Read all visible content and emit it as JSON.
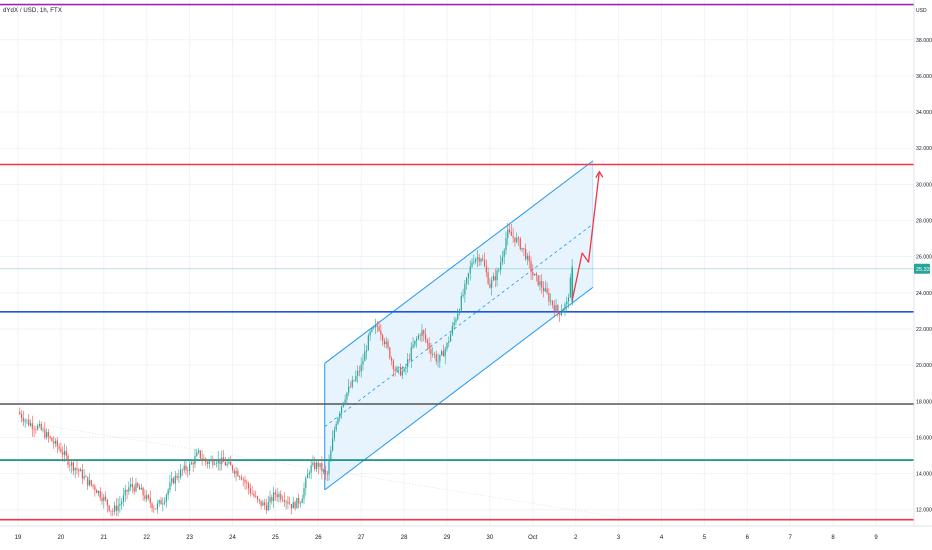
{
  "symbol": "dYdX / USD, 1h, FTX",
  "currency": "USD",
  "chart_data": {
    "type": "candlestick",
    "x": {
      "labels": [
        "19",
        "20",
        "21",
        "22",
        "23",
        "24",
        "25",
        "26",
        "27",
        "28",
        "29",
        "30",
        "Oct",
        "2",
        "3",
        "4",
        "5",
        "6",
        "7",
        "8",
        "9"
      ],
      "range": [
        0,
        21.6
      ]
    },
    "y": {
      "labels": [
        "12.000",
        "14.000",
        "16.000",
        "18.000",
        "20.000",
        "22.000",
        "24.000",
        "26.000",
        "28.000",
        "30.000",
        "32.000",
        "34.000",
        "36.000",
        "38.000"
      ],
      "range": [
        11.1,
        40.2
      ]
    },
    "last_price": "25.33",
    "colors": {
      "up": "#26a69a",
      "down": "#ef5350",
      "channel": "#2196f3",
      "channel_fill": "#e3f2fd",
      "arrow": "#f23645"
    },
    "horizontal_lines": [
      {
        "price": 39.95,
        "color": "#9c27b0"
      },
      {
        "price": 31.1,
        "color": "#f23645"
      },
      {
        "price": 22.95,
        "color": "#1e53e5"
      },
      {
        "price": 17.85,
        "color": "#555555"
      },
      {
        "price": 14.75,
        "color": "#0a8a7f"
      },
      {
        "price": 11.45,
        "color": "#f23645"
      }
    ],
    "last_price_line": {
      "price": 25.33,
      "color": "#26a69a"
    },
    "parallel_channel": {
      "lower": [
        [
          7.15,
          13.1
        ],
        [
          13.4,
          24.3
        ]
      ],
      "upper": [
        [
          7.15,
          20.1
        ],
        [
          13.4,
          31.3
        ]
      ],
      "midline": [
        [
          7.15,
          16.6
        ],
        [
          13.4,
          27.8
        ]
      ]
    },
    "projection_arrow": [
      [
        12.92,
        23.6
      ],
      [
        13.15,
        26.2
      ],
      [
        13.3,
        25.7
      ],
      [
        13.55,
        30.7
      ]
    ],
    "price_path": [
      [
        0.0,
        17.4
      ],
      [
        0.25,
        16.8
      ],
      [
        0.5,
        16.5
      ],
      [
        0.75,
        15.9
      ],
      [
        1.0,
        15.3
      ],
      [
        1.2,
        14.6
      ],
      [
        1.4,
        14.2
      ],
      [
        1.6,
        13.6
      ],
      [
        1.8,
        13.2
      ],
      [
        2.0,
        12.6
      ],
      [
        2.2,
        11.9
      ],
      [
        2.4,
        12.4
      ],
      [
        2.6,
        13.3
      ],
      [
        2.8,
        13.2
      ],
      [
        3.0,
        12.6
      ],
      [
        3.2,
        12.1
      ],
      [
        3.4,
        12.6
      ],
      [
        3.6,
        13.6
      ],
      [
        3.8,
        14.1
      ],
      [
        4.0,
        14.4
      ],
      [
        4.2,
        15.1
      ],
      [
        4.4,
        14.6
      ],
      [
        4.6,
        14.8
      ],
      [
        4.8,
        14.6
      ],
      [
        5.0,
        14.3
      ],
      [
        5.2,
        13.9
      ],
      [
        5.4,
        13.1
      ],
      [
        5.6,
        12.4
      ],
      [
        5.8,
        12.2
      ],
      [
        6.0,
        12.9
      ],
      [
        6.2,
        12.7
      ],
      [
        6.4,
        12.2
      ],
      [
        6.6,
        12.6
      ],
      [
        6.8,
        14.3
      ],
      [
        7.0,
        14.5
      ],
      [
        7.2,
        13.8
      ],
      [
        7.4,
        16.8
      ],
      [
        7.6,
        18.2
      ],
      [
        7.8,
        19.0
      ],
      [
        8.0,
        19.9
      ],
      [
        8.2,
        21.7
      ],
      [
        8.4,
        22.2
      ],
      [
        8.6,
        21.0
      ],
      [
        8.8,
        19.7
      ],
      [
        9.0,
        19.6
      ],
      [
        9.2,
        21.0
      ],
      [
        9.4,
        21.9
      ],
      [
        9.6,
        20.9
      ],
      [
        9.8,
        20.2
      ],
      [
        10.0,
        21.1
      ],
      [
        10.2,
        22.6
      ],
      [
        10.4,
        24.1
      ],
      [
        10.6,
        25.9
      ],
      [
        10.8,
        26.0
      ],
      [
        11.0,
        24.4
      ],
      [
        11.2,
        25.2
      ],
      [
        11.4,
        27.3
      ],
      [
        11.6,
        27.0
      ],
      [
        11.8,
        26.3
      ],
      [
        12.0,
        25.0
      ],
      [
        12.2,
        24.4
      ],
      [
        12.4,
        23.6
      ],
      [
        12.6,
        22.9
      ],
      [
        12.8,
        23.4
      ],
      [
        12.92,
        25.33
      ]
    ]
  }
}
